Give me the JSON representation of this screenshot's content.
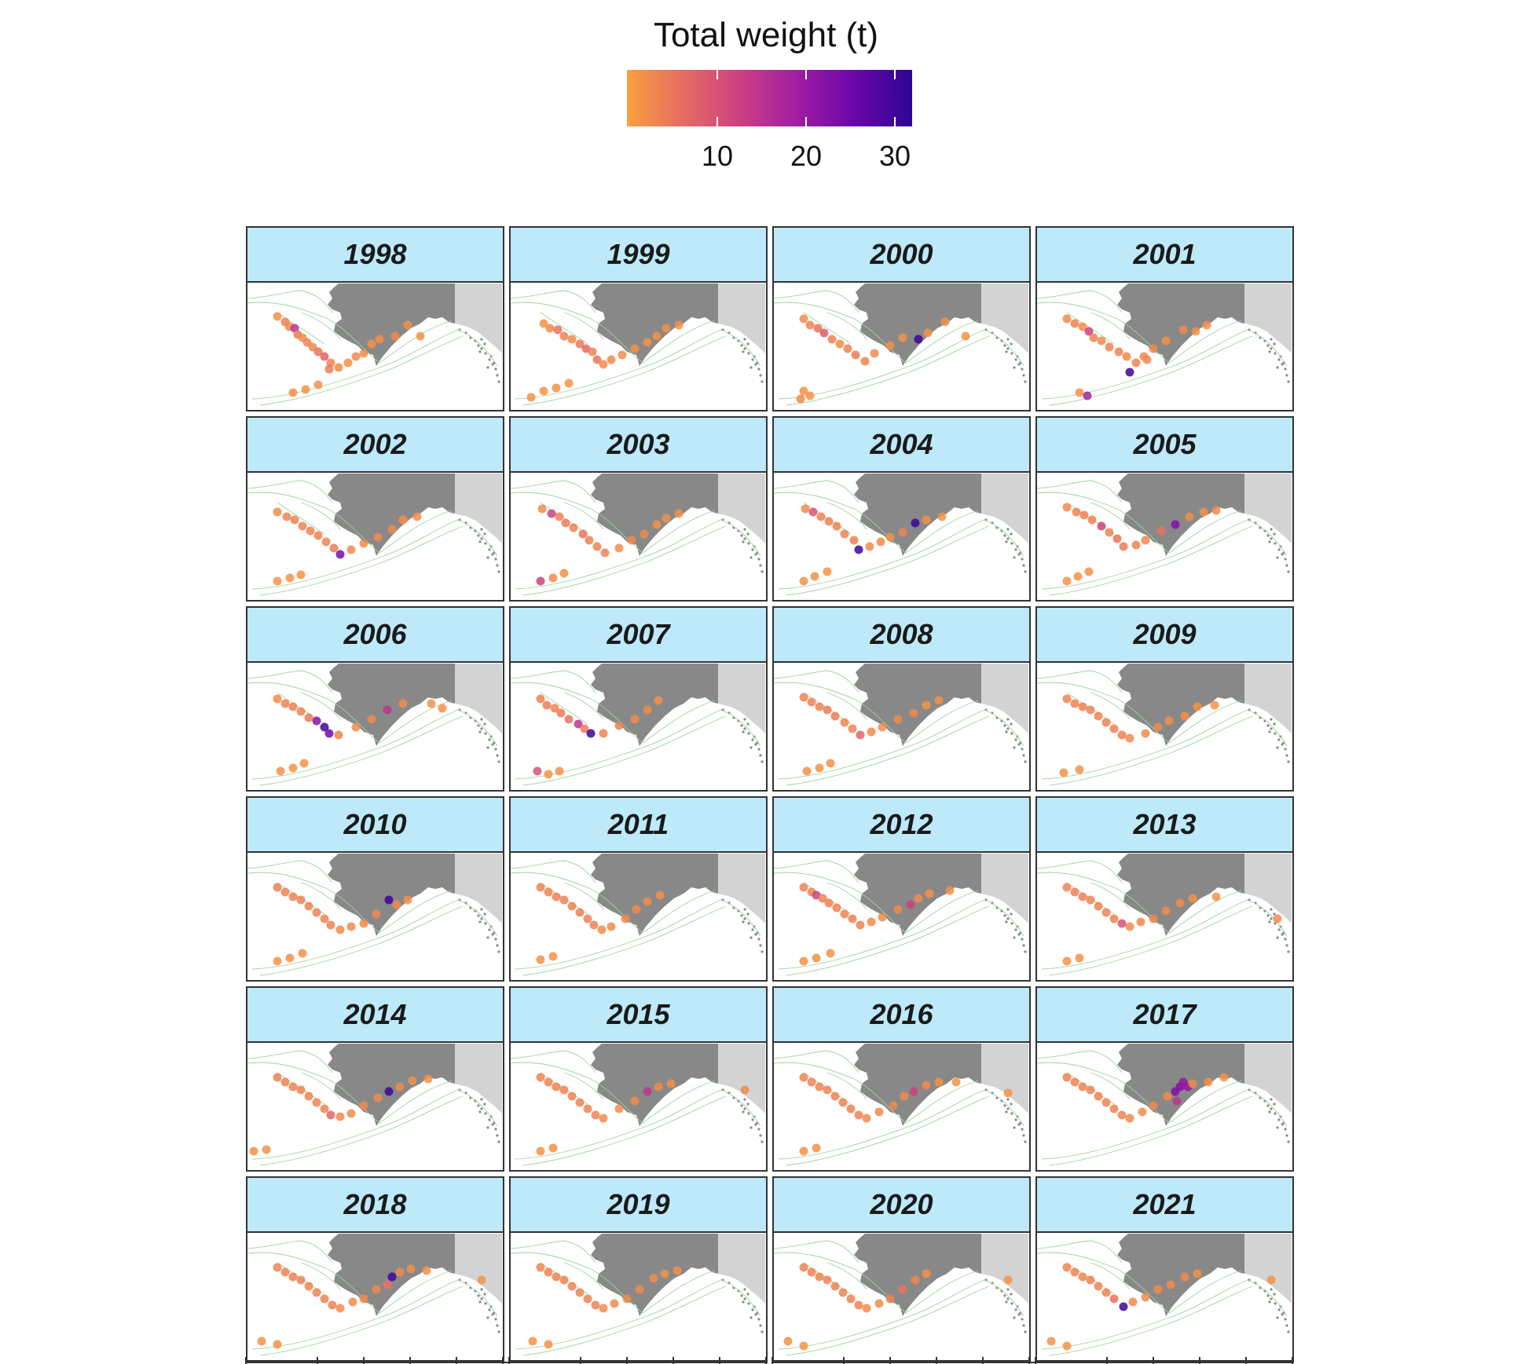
{
  "legend": {
    "title": "Total weight (t)",
    "ticks": [
      10,
      20,
      30
    ],
    "range": [
      0,
      32
    ],
    "palette": [
      "#f9a23c",
      "#e8705f",
      "#c93a86",
      "#9a1aa5",
      "#6a06a8",
      "#2d0593"
    ]
  },
  "colors": {
    "strip_fill": "#bde9f8",
    "alaska_land": "#888888",
    "canada_land": "#d3d3d3",
    "contour": "#9fd39f",
    "point_low": "#f9a23c"
  },
  "panels": [
    {
      "year": "1998"
    },
    {
      "year": "1999"
    },
    {
      "year": "2000"
    },
    {
      "year": "2001"
    },
    {
      "year": "2002"
    },
    {
      "year": "2003"
    },
    {
      "year": "2004"
    },
    {
      "year": "2005"
    },
    {
      "year": "2006"
    },
    {
      "year": "2007"
    },
    {
      "year": "2008"
    },
    {
      "year": "2009"
    },
    {
      "year": "2010"
    },
    {
      "year": "2011"
    },
    {
      "year": "2012"
    },
    {
      "year": "2013"
    },
    {
      "year": "2014"
    },
    {
      "year": "2015"
    },
    {
      "year": "2016"
    },
    {
      "year": "2017"
    },
    {
      "year": "2018"
    },
    {
      "year": "2019"
    },
    {
      "year": "2020"
    },
    {
      "year": "2021"
    }
  ]
}
